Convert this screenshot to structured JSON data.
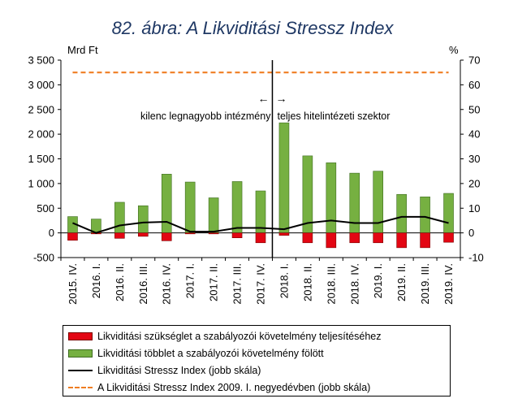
{
  "figure": {
    "title": "82. ábra: A Likviditási Stressz Index"
  },
  "chart_data": {
    "type": "bar",
    "categories": [
      "2015. IV.",
      "2016. I.",
      "2016. II.",
      "2016. III.",
      "2016. IV.",
      "2017. I.",
      "2017. II.",
      "2017. III.",
      "2017. IV.",
      "2018. I.",
      "2018. II.",
      "2018. III.",
      "2018. IV.",
      "2019. I.",
      "2019. II.",
      "2019. III.",
      "2019. IV."
    ],
    "left_unit": "Mrd Ft",
    "right_unit": "%",
    "ylim_left": [
      -500,
      3500
    ],
    "ylim_right": [
      -10,
      70
    ],
    "left_ticks": [
      "-500",
      "0",
      "500",
      "1 000",
      "1 500",
      "2 000",
      "2 500",
      "3 000",
      "3 500"
    ],
    "right_ticks": [
      "-10",
      "0",
      "10",
      "20",
      "30",
      "40",
      "50",
      "60",
      "70"
    ],
    "series": [
      {
        "name": "Likviditási szükséglet a szabályozói követelmény teljesítéséhez",
        "kind": "bar",
        "axis": "left",
        "color": "#e30613",
        "values": [
          -150,
          -20,
          -110,
          -70,
          -160,
          -20,
          -20,
          -100,
          -200,
          -50,
          -200,
          -300,
          -200,
          -200,
          -300,
          -300,
          -190
        ]
      },
      {
        "name": "Likviditási többlet a szabályozói követelmény fölött",
        "kind": "bar",
        "axis": "left",
        "color": "#76b041",
        "values": [
          330,
          280,
          620,
          550,
          1190,
          1030,
          710,
          1040,
          850,
          2230,
          1560,
          1420,
          1210,
          1250,
          780,
          730,
          800
        ]
      },
      {
        "name": "Likviditási Stressz Index (jobb skála)",
        "kind": "line",
        "axis": "right",
        "color": "#000000",
        "values": [
          4,
          0,
          3,
          4.2,
          4.5,
          0.5,
          0.5,
          2,
          2,
          1.5,
          4,
          5,
          4,
          4,
          6.5,
          6.5,
          4
        ]
      },
      {
        "name": "A Likviditási Stressz Index 2009. I. negyedévben (jobb skála)",
        "kind": "dashed-line",
        "axis": "right",
        "color": "#ef7d22",
        "values": [
          65,
          65,
          65,
          65,
          65,
          65,
          65,
          65,
          65,
          65,
          65,
          65,
          65,
          65,
          65,
          65,
          65
        ]
      }
    ],
    "annotations": {
      "left_text": "kilenc legnagyobb intézmény",
      "right_text": "teljes hitelintézeti szektor",
      "left_arrow": "←",
      "right_arrow": "→",
      "divider_between": [
        "2017. IV.",
        "2018. I."
      ]
    },
    "grid": false,
    "legend_position": "bottom"
  }
}
